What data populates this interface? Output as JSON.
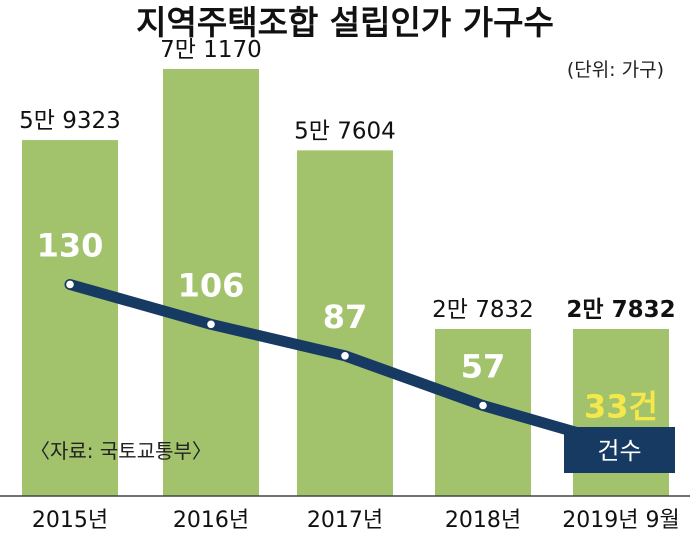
{
  "chart_data": {
    "type": "bar",
    "title": "지역주택조합 설립인가 가구수",
    "unit": "(단위: 가구)",
    "categories": [
      "2015년",
      "2016년",
      "2017년",
      "2018년",
      "2019년 9월"
    ],
    "bar_series": {
      "name": "",
      "values": [
        59323,
        71170,
        57604,
        27832,
        27832
      ],
      "value_labels": [
        "5만 9323",
        "7만 1170",
        "5만 7604",
        "2만 7832",
        "2만 7832"
      ]
    },
    "line_series": {
      "name": "건수",
      "values": [
        130,
        106,
        87,
        57,
        33
      ],
      "value_labels": [
        "130",
        "106",
        "87",
        "57",
        "33건"
      ]
    },
    "source": "〈자료: 국토교통부〉",
    "ylim": [
      0,
      80000
    ],
    "line_ylim": [
      0,
      190
    ],
    "colors": {
      "bar": "#a2c26c",
      "line": "#173a63",
      "line_highlight_label": "#f5e84a",
      "legend_box": "#173a63"
    }
  }
}
